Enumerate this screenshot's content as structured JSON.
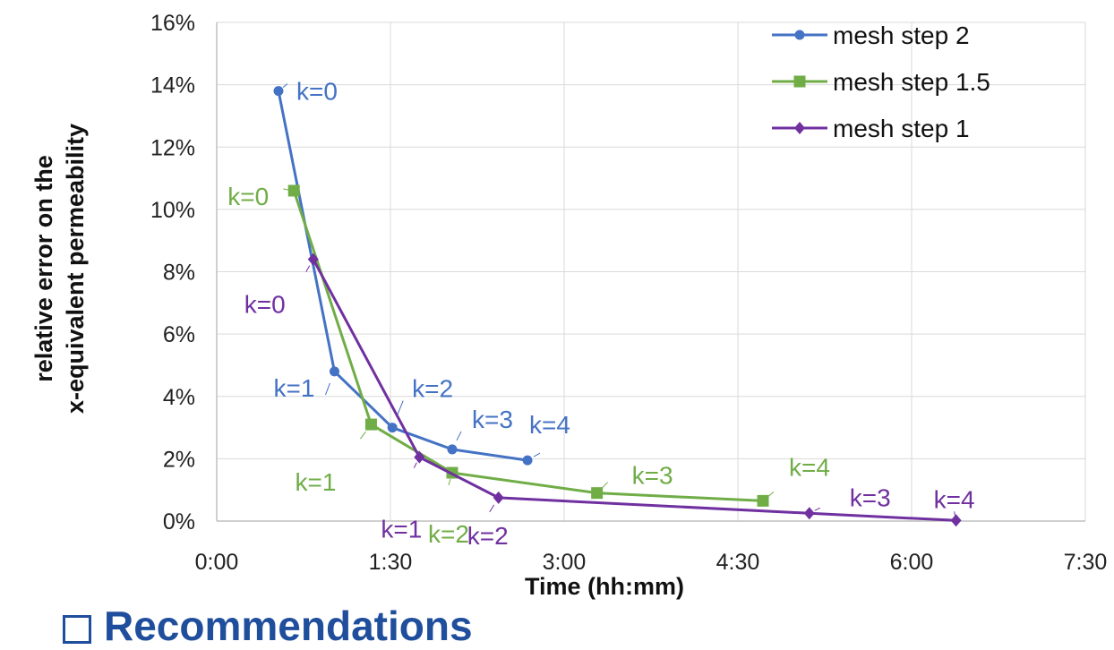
{
  "chart_data": {
    "type": "line",
    "xlabel": "Time (hh:mm)",
    "ylabel": [
      "relative error on the",
      "x-equivalent permeability"
    ],
    "x_unit": "minutes",
    "xlim": [
      0,
      450
    ],
    "ylim": [
      0,
      16
    ],
    "x_ticks": [
      "0:00",
      "1:30",
      "3:00",
      "4:30",
      "6:00",
      "7:30"
    ],
    "y_ticks": [
      "0%",
      "2%",
      "4%",
      "6%",
      "8%",
      "10%",
      "12%",
      "14%",
      "16%"
    ],
    "grid": true,
    "legend_position": "top-right",
    "series": [
      {
        "name": "mesh step 2",
        "color": "#4472c4",
        "marker": "circle",
        "points": [
          [
            32,
            13.8
          ],
          [
            61,
            4.8
          ],
          [
            91,
            3.0
          ],
          [
            122,
            2.3
          ],
          [
            161,
            1.95
          ]
        ],
        "labels": [
          "k=0",
          "k=1",
          "k=2",
          "k=3",
          "k=4"
        ]
      },
      {
        "name": "mesh step 1.5",
        "color": "#70ad47",
        "marker": "square",
        "points": [
          [
            40,
            10.6
          ],
          [
            80,
            3.1
          ],
          [
            122,
            1.55
          ],
          [
            197,
            0.9
          ],
          [
            283,
            0.65
          ]
        ],
        "labels": [
          "k=0",
          "k=1",
          "k=2",
          "k=3",
          "k=4"
        ]
      },
      {
        "name": "mesh step 1",
        "color": "#7030a0",
        "marker": "diamond",
        "points": [
          [
            50,
            8.4
          ],
          [
            105,
            2.05
          ],
          [
            146,
            0.75
          ],
          [
            307,
            0.25
          ],
          [
            383,
            0.02
          ]
        ],
        "labels": [
          "k=0",
          "k=1",
          "k=2",
          "k=3",
          "k=4"
        ]
      }
    ]
  },
  "footer": {
    "heading": "Recommendations"
  }
}
